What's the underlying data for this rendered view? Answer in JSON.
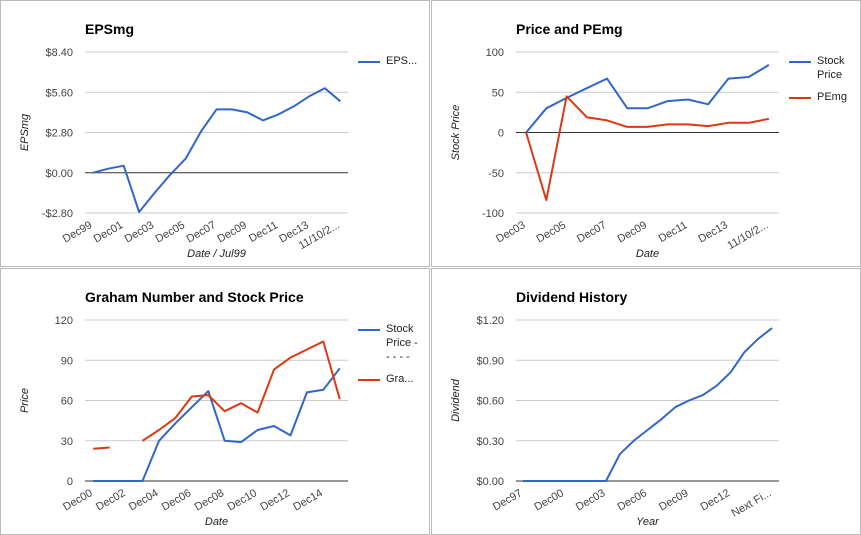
{
  "chart_data": [
    {
      "type": "line",
      "title": "EPSmg",
      "x_label": "Date / Jul99",
      "y_label": "EPSmg",
      "categories": [
        "Dec99",
        null,
        "Dec01",
        null,
        "Dec03",
        null,
        "Dec05",
        null,
        "Dec07",
        null,
        "Dec09",
        null,
        "Dec11",
        null,
        "Dec13",
        null,
        "11/10/2..."
      ],
      "series": [
        {
          "name": "EPS...",
          "color": "#3366cc",
          "values": [
            0,
            0.28,
            0.49,
            -2.73,
            -1.4,
            -0.14,
            0.98,
            2.87,
            4.41,
            4.41,
            4.2,
            3.64,
            4.06,
            4.62,
            5.32,
            5.88,
            4.97
          ]
        }
      ],
      "ylim": [
        -2.8,
        8.4
      ],
      "yticks": [
        {
          "value": -2.8,
          "label": "-$2.80"
        },
        {
          "value": 0,
          "label": "$0.00"
        },
        {
          "value": 2.8,
          "label": "$2.80"
        },
        {
          "value": 5.6,
          "label": "$5.60"
        },
        {
          "value": 8.4,
          "label": "$8.40"
        }
      ],
      "grid": true
    },
    {
      "type": "line",
      "title": "Price and PEmg",
      "x_label": "Date",
      "y_label": "Stock Price",
      "categories": [
        "Dec03",
        null,
        "Dec05",
        null,
        "Dec07",
        null,
        "Dec09",
        null,
        "Dec11",
        null,
        "Dec13",
        null,
        "11/10/2..."
      ],
      "series": [
        {
          "name": "Stock Price",
          "color": "#3366cc",
          "values": [
            0,
            30,
            43,
            55,
            67,
            30,
            30,
            39,
            41,
            35,
            67,
            69,
            84
          ]
        },
        {
          "name": "PEmg",
          "color": "#dc3912",
          "values": [
            0,
            -84,
            45,
            19,
            15,
            7,
            7,
            10,
            10,
            8,
            12,
            12,
            17
          ]
        }
      ],
      "ylim": [
        -100,
        100
      ],
      "yticks": [
        -100,
        -50,
        0,
        50,
        100
      ],
      "grid": true
    },
    {
      "type": "line",
      "title": "Graham Number and Stock Price",
      "x_label": "Date",
      "y_label": "Price",
      "categories": [
        "Dec00",
        null,
        "Dec02",
        null,
        "Dec04",
        null,
        "Dec06",
        null,
        "Dec08",
        null,
        "Dec10",
        null,
        "Dec12",
        null,
        "Dec14",
        null
      ],
      "series": [
        {
          "name": "Stock Price - - - - -",
          "color": "#3366cc",
          "values": [
            0,
            0,
            0,
            0,
            30,
            43,
            55,
            67,
            30,
            29,
            38,
            41,
            34,
            66,
            68,
            84
          ]
        },
        {
          "name": "Gra...",
          "color": "#dc3912",
          "values": [
            24,
            25,
            null,
            30,
            38,
            47,
            63,
            64,
            52,
            58,
            51,
            83,
            92,
            98,
            104,
            61
          ]
        }
      ],
      "ylim": [
        0,
        120
      ],
      "yticks": [
        0,
        30,
        60,
        90,
        120
      ],
      "grid": true
    },
    {
      "type": "line",
      "title": "Dividend History",
      "x_label": "Year",
      "y_label": "Dividend",
      "categories": [
        "Dec97",
        null,
        null,
        "Dec00",
        null,
        null,
        "Dec03",
        null,
        null,
        "Dec06",
        null,
        null,
        "Dec09",
        null,
        null,
        "Dec12",
        null,
        null,
        "Next Fi..."
      ],
      "series": [
        {
          "name": "Dividend",
          "color": "#3366cc",
          "values": [
            0,
            0,
            0,
            0,
            0,
            0,
            0,
            0.2,
            0.3,
            0.38,
            0.46,
            0.55,
            0.6,
            0.64,
            0.71,
            0.81,
            0.96,
            1.06,
            1.14
          ]
        }
      ],
      "show_legend": false,
      "ylim": [
        0,
        1.2
      ],
      "yticks": [
        {
          "value": 0,
          "label": "$0.00"
        },
        {
          "value": 0.3,
          "label": "$0.30"
        },
        {
          "value": 0.6,
          "label": "$0.60"
        },
        {
          "value": 0.9,
          "label": "$0.90"
        },
        {
          "value": 1.2,
          "label": "$1.20"
        }
      ],
      "grid": true
    }
  ]
}
